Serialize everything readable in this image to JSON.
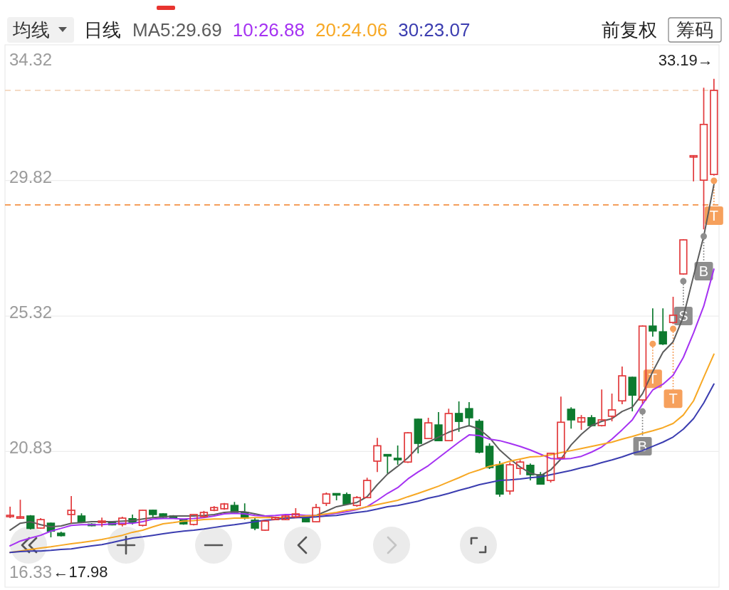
{
  "chart_data": {
    "type": "candlestick",
    "title": "日线",
    "subtitle": "前复权",
    "legend_title": "均线",
    "legend": "top left",
    "grid": "y",
    "tick_labels": "y",
    "categories": [
      null,
      null,
      null,
      null,
      null,
      null,
      null,
      null,
      null,
      null,
      null,
      null,
      null,
      null,
      null,
      null,
      null,
      null,
      null,
      null,
      null,
      null,
      null,
      null,
      null,
      null,
      null,
      null,
      null,
      null,
      null,
      null,
      null,
      null,
      null,
      null,
      null,
      null,
      null,
      null,
      null,
      null,
      null,
      null,
      null,
      null,
      null,
      null,
      null,
      null,
      null,
      null,
      null,
      null,
      null,
      null,
      null,
      null,
      null,
      null,
      null,
      null,
      null,
      null,
      null,
      null,
      null,
      null,
      null,
      null
    ],
    "ohlc": [
      [
        18.68,
        19.0,
        18.62,
        18.7
      ],
      [
        18.63,
        19.23,
        18.62,
        18.65
      ],
      [
        18.69,
        18.72,
        18.24,
        18.28
      ],
      [
        18.29,
        18.62,
        18.27,
        18.57
      ],
      [
        18.45,
        18.47,
        17.98,
        18.19
      ],
      [
        18.12,
        18.17,
        18.01,
        18.04
      ],
      [
        18.74,
        19.35,
        18.45,
        18.88
      ],
      [
        18.69,
        18.78,
        18.48,
        18.5
      ],
      [
        18.41,
        18.45,
        18.35,
        18.38
      ],
      [
        18.49,
        18.64,
        18.33,
        18.51
      ],
      [
        18.48,
        18.5,
        18.38,
        18.4
      ],
      [
        18.41,
        18.67,
        18.34,
        18.62
      ],
      [
        18.6,
        18.74,
        18.41,
        18.48
      ],
      [
        18.38,
        18.9,
        18.34,
        18.88
      ],
      [
        18.88,
        18.9,
        18.65,
        18.74
      ],
      [
        18.76,
        18.78,
        18.62,
        18.65
      ],
      [
        18.69,
        18.72,
        18.6,
        18.62
      ],
      [
        18.57,
        18.6,
        18.4,
        18.43
      ],
      [
        18.41,
        18.76,
        18.38,
        18.74
      ],
      [
        18.67,
        18.86,
        18.64,
        18.81
      ],
      [
        18.88,
        19.02,
        18.85,
        18.97
      ],
      [
        18.93,
        19.12,
        18.9,
        19.09
      ],
      [
        19.04,
        19.16,
        18.76,
        18.81
      ],
      [
        18.81,
        19.11,
        18.57,
        18.62
      ],
      [
        18.55,
        18.62,
        18.22,
        18.29
      ],
      [
        18.22,
        18.55,
        18.2,
        18.52
      ],
      [
        18.57,
        18.67,
        18.55,
        18.64
      ],
      [
        18.57,
        18.72,
        18.55,
        18.69
      ],
      [
        18.66,
        18.95,
        18.62,
        18.76
      ],
      [
        18.64,
        18.67,
        18.48,
        18.5
      ],
      [
        18.5,
        19.09,
        18.48,
        18.97
      ],
      [
        19.11,
        19.47,
        19.02,
        19.42
      ],
      [
        19.42,
        19.42,
        19.21,
        19.4
      ],
      [
        19.4,
        19.47,
        19.07,
        19.09
      ],
      [
        19.04,
        19.35,
        19.0,
        19.3
      ],
      [
        19.3,
        19.96,
        19.28,
        19.87
      ],
      [
        20.51,
        21.28,
        20.15,
        21.02
      ],
      [
        20.72,
        20.72,
        20.1,
        20.69
      ],
      [
        20.6,
        21.03,
        20.39,
        20.56
      ],
      [
        20.48,
        21.47,
        20.45,
        21.45
      ],
      [
        21.9,
        21.92,
        20.77,
        21.1
      ],
      [
        21.26,
        21.95,
        21.24,
        21.78
      ],
      [
        21.71,
        22.14,
        21.17,
        21.19
      ],
      [
        21.19,
        22.25,
        21.17,
        22.09
      ],
      [
        22.09,
        22.49,
        21.48,
        21.83
      ],
      [
        22.25,
        22.47,
        21.66,
        21.95
      ],
      [
        21.83,
        21.9,
        20.77,
        20.81
      ],
      [
        21.0,
        21.1,
        20.25,
        20.3
      ],
      [
        20.39,
        20.51,
        19.33,
        19.42
      ],
      [
        19.52,
        20.47,
        19.4,
        20.39
      ],
      [
        20.27,
        20.55,
        20.06,
        20.48
      ],
      [
        20.37,
        20.43,
        19.87,
        20.06
      ],
      [
        20.06,
        20.15,
        19.73,
        19.75
      ],
      [
        19.87,
        20.79,
        19.8,
        20.77
      ],
      [
        20.62,
        22.65,
        20.6,
        21.8
      ],
      [
        22.23,
        22.3,
        21.59,
        21.88
      ],
      [
        21.81,
        22.04,
        21.55,
        21.95
      ],
      [
        21.95,
        22.04,
        21.66,
        21.69
      ],
      [
        21.69,
        22.89,
        21.66,
        21.88
      ],
      [
        22.0,
        22.75,
        21.83,
        22.21
      ],
      [
        22.51,
        23.65,
        22.4,
        23.34
      ],
      [
        23.29,
        23.31,
        22.16,
        22.7
      ],
      [
        22.54,
        25.01,
        22.42,
        24.99
      ],
      [
        24.99,
        25.58,
        24.64,
        24.83
      ],
      [
        24.8,
        25.58,
        24.36,
        24.4
      ],
      [
        25.11,
        25.96,
        25.06,
        25.35
      ],
      [
        26.72,
        27.87,
        26.7,
        27.85
      ],
      [
        30.6,
        30.64,
        29.79,
        30.64
      ],
      [
        29.83,
        32.9,
        28.2,
        31.68
      ],
      [
        30.02,
        33.19,
        29.98,
        32.81
      ]
    ],
    "colors": [
      "#e2393b",
      "#e2393b",
      "#0d7a2f",
      "#e2393b",
      "#0d7a2f",
      "#0d7a2f",
      "#e2393b",
      "#0d7a2f",
      "#0d7a2f",
      "#e2393b",
      "#0d7a2f",
      "#e2393b",
      "#0d7a2f",
      "#e2393b",
      "#0d7a2f",
      "#0d7a2f",
      "#0d7a2f",
      "#0d7a2f",
      "#e2393b",
      "#e2393b",
      "#e2393b",
      "#e2393b",
      "#0d7a2f",
      "#0d7a2f",
      "#0d7a2f",
      "#e2393b",
      "#e2393b",
      "#e2393b",
      "#e2393b",
      "#0d7a2f",
      "#e2393b",
      "#e2393b",
      "#0d7a2f",
      "#0d7a2f",
      "#e2393b",
      "#e2393b",
      "#e2393b",
      "#0d7a2f",
      "#0d7a2f",
      "#e2393b",
      "#0d7a2f",
      "#e2393b",
      "#0d7a2f",
      "#e2393b",
      "#0d7a2f",
      "#0d7a2f",
      "#0d7a2f",
      "#0d7a2f",
      "#0d7a2f",
      "#e2393b",
      "#e2393b",
      "#0d7a2f",
      "#0d7a2f",
      "#e2393b",
      "#e2393b",
      "#0d7a2f",
      "#e2393b",
      "#0d7a2f",
      "#e2393b",
      "#e2393b",
      "#e2393b",
      "#0d7a2f",
      "#e2393b",
      "#0d7a2f",
      "#0d7a2f",
      "#e2393b",
      "#e2393b",
      "#e2393b",
      "#e2393b",
      "#e2393b"
    ],
    "series": [
      {
        "name": "MA5:29.69",
        "type": "line",
        "color": "#5c5c5c",
        "values": [
          18.22,
          18.45,
          18.5,
          18.4,
          18.33,
          18.36,
          18.45,
          18.47,
          18.5,
          18.5,
          18.5,
          18.52,
          18.54,
          18.59,
          18.64,
          18.66,
          18.69,
          18.69,
          18.69,
          18.71,
          18.74,
          18.81,
          18.83,
          18.83,
          18.76,
          18.69,
          18.64,
          18.62,
          18.64,
          18.66,
          18.71,
          18.85,
          19.0,
          19.07,
          19.14,
          19.33,
          19.73,
          20.08,
          20.34,
          20.62,
          20.98,
          21.14,
          21.31,
          21.47,
          21.59,
          21.69,
          21.57,
          21.29,
          20.88,
          20.58,
          20.32,
          20.11,
          20.03,
          20.22,
          20.58,
          21.05,
          21.4,
          21.69,
          21.83,
          21.92,
          22.16,
          22.3,
          22.75,
          23.48,
          24.12,
          24.47,
          25.3,
          26.65,
          27.97,
          29.69
        ]
      },
      {
        "name": "10:26.88",
        "type": "line",
        "color": "#a532f2",
        "values": [
          17.7,
          17.86,
          17.96,
          18.05,
          18.19,
          18.28,
          18.38,
          18.4,
          18.4,
          18.4,
          18.43,
          18.45,
          18.45,
          18.5,
          18.59,
          18.61,
          18.61,
          18.59,
          18.61,
          18.64,
          18.69,
          18.76,
          18.78,
          18.76,
          18.71,
          18.69,
          18.71,
          18.74,
          18.74,
          18.71,
          18.71,
          18.74,
          18.78,
          18.83,
          18.9,
          19.0,
          19.21,
          19.44,
          19.63,
          19.92,
          20.15,
          20.36,
          20.62,
          20.88,
          21.14,
          21.38,
          21.36,
          21.24,
          21.19,
          21.1,
          21.0,
          20.88,
          20.74,
          20.6,
          20.58,
          20.6,
          20.67,
          20.81,
          20.98,
          21.24,
          21.55,
          21.88,
          22.4,
          22.87,
          23.06,
          23.36,
          23.95,
          24.76,
          25.65,
          26.88
        ]
      },
      {
        "name": "20:24.06",
        "type": "line",
        "color": "#f7a824",
        "values": [
          17.48,
          17.53,
          17.58,
          17.63,
          17.67,
          17.72,
          17.77,
          17.81,
          17.86,
          17.91,
          17.98,
          18.05,
          18.15,
          18.22,
          18.33,
          18.43,
          18.47,
          18.52,
          18.54,
          18.57,
          18.59,
          18.59,
          18.62,
          18.62,
          18.64,
          18.64,
          18.64,
          18.64,
          18.66,
          18.69,
          18.71,
          18.76,
          18.81,
          18.88,
          18.92,
          19.0,
          19.07,
          19.14,
          19.21,
          19.33,
          19.44,
          19.56,
          19.68,
          19.82,
          19.96,
          20.11,
          20.22,
          20.34,
          20.41,
          20.51,
          20.58,
          20.65,
          20.67,
          20.72,
          20.79,
          20.86,
          20.93,
          21.0,
          21.07,
          21.14,
          21.24,
          21.33,
          21.43,
          21.52,
          21.62,
          21.76,
          22.04,
          22.51,
          23.29,
          24.06
        ]
      },
      {
        "name": "30:23.07",
        "type": "line",
        "color": "#3b3db0",
        "values": [
          17.48,
          17.51,
          17.53,
          17.53,
          17.55,
          17.58,
          17.6,
          17.65,
          17.7,
          17.74,
          17.81,
          17.89,
          17.96,
          18.0,
          18.05,
          18.1,
          18.15,
          18.19,
          18.22,
          18.26,
          18.31,
          18.36,
          18.4,
          18.45,
          18.5,
          18.55,
          18.57,
          18.62,
          18.64,
          18.64,
          18.66,
          18.69,
          18.71,
          18.76,
          18.81,
          18.85,
          18.92,
          19.0,
          19.04,
          19.11,
          19.18,
          19.28,
          19.35,
          19.44,
          19.54,
          19.63,
          19.73,
          19.8,
          19.87,
          19.89,
          19.92,
          19.96,
          19.99,
          20.06,
          20.13,
          20.2,
          20.29,
          20.36,
          20.46,
          20.55,
          20.65,
          20.77,
          20.86,
          21.0,
          21.14,
          21.31,
          21.57,
          21.92,
          22.44,
          23.07
        ]
      },
      {
        "type": "scatter",
        "marker": "circle",
        "color": "#8e8e8e",
        "values": [
          null,
          null,
          null,
          null,
          null,
          null,
          null,
          null,
          null,
          null,
          null,
          null,
          null,
          null,
          null,
          null,
          null,
          null,
          null,
          null,
          null,
          null,
          null,
          null,
          null,
          null,
          null,
          null,
          null,
          null,
          null,
          null,
          null,
          null,
          null,
          null,
          null,
          null,
          null,
          null,
          null,
          null,
          null,
          null,
          null,
          null,
          null,
          null,
          null,
          null,
          null,
          null,
          null,
          null,
          null,
          null,
          null,
          null,
          null,
          null,
          null,
          null,
          22.16,
          null,
          null,
          null,
          26.48,
          null,
          27.97,
          null
        ],
        "value_labels": [
          null,
          null,
          null,
          null,
          null,
          null,
          null,
          null,
          null,
          null,
          null,
          null,
          null,
          null,
          null,
          null,
          null,
          null,
          null,
          null,
          null,
          null,
          null,
          null,
          null,
          null,
          null,
          null,
          null,
          null,
          null,
          null,
          null,
          null,
          null,
          null,
          null,
          null,
          null,
          null,
          null,
          null,
          null,
          null,
          null,
          null,
          null,
          null,
          null,
          null,
          null,
          null,
          null,
          null,
          null,
          null,
          null,
          null,
          null,
          null,
          null,
          null,
          "B",
          null,
          null,
          null,
          "S",
          null,
          "B",
          null
        ]
      },
      {
        "type": "scatter",
        "marker": "circle",
        "color": "#f6a05c",
        "values": [
          null,
          null,
          null,
          null,
          null,
          null,
          null,
          null,
          null,
          null,
          null,
          null,
          null,
          null,
          null,
          null,
          null,
          null,
          null,
          null,
          null,
          null,
          null,
          null,
          null,
          null,
          null,
          null,
          null,
          null,
          null,
          null,
          null,
          null,
          null,
          null,
          null,
          null,
          null,
          null,
          null,
          null,
          null,
          null,
          null,
          null,
          null,
          null,
          null,
          null,
          null,
          null,
          null,
          null,
          null,
          null,
          null,
          null,
          null,
          null,
          null,
          null,
          null,
          24.4,
          null,
          24.9,
          null,
          null,
          null,
          29.81
        ],
        "value_labels": [
          null,
          null,
          null,
          null,
          null,
          null,
          null,
          null,
          null,
          null,
          null,
          null,
          null,
          null,
          null,
          null,
          null,
          null,
          null,
          null,
          null,
          null,
          null,
          null,
          null,
          null,
          null,
          null,
          null,
          null,
          null,
          null,
          null,
          null,
          null,
          null,
          null,
          null,
          null,
          null,
          null,
          null,
          null,
          null,
          null,
          null,
          null,
          null,
          null,
          null,
          null,
          null,
          null,
          null,
          null,
          null,
          null,
          null,
          null,
          null,
          null,
          null,
          null,
          "T",
          null,
          "T",
          null,
          null,
          null,
          "T"
        ]
      }
    ],
    "ylim": [
      16.33,
      34.32
    ],
    "yticks": [
      16.33,
      20.83,
      25.32,
      29.82,
      34.32
    ],
    "ref_lines": [
      {
        "axis": "y",
        "value": 32.81,
        "color": "#f2cfb2",
        "line_style": "dashed"
      },
      {
        "axis": "y",
        "value": 29.01,
        "color": "#f39145",
        "line_style": "dashed"
      }
    ],
    "annotations": [
      "筹码",
      "33.19→",
      "←17.98"
    ]
  }
}
